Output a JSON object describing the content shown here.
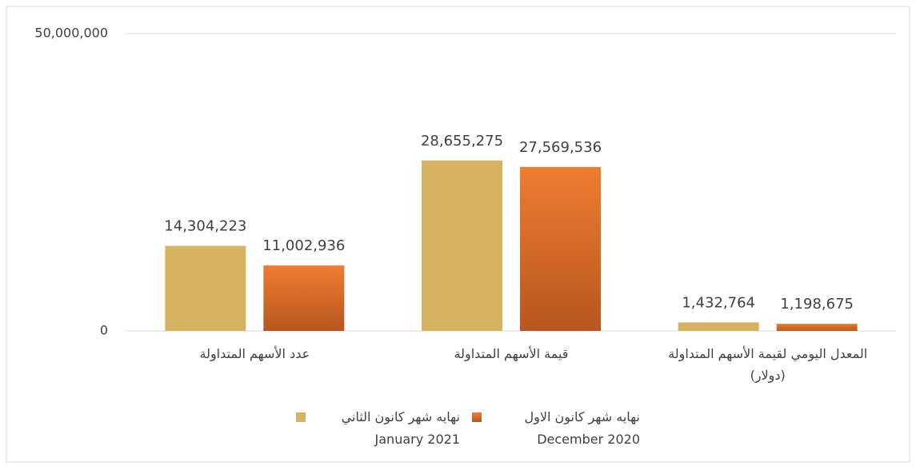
{
  "chart_data": {
    "type": "bar",
    "categories": [
      "عدد الأسهم المتداولة",
      "قيمة الأسهم المتداولة",
      "المعدل اليومي لقيمة الأسهم المتداولة\n(دولار)"
    ],
    "series": [
      {
        "name": "نهايه شهر كانون الثاني\nJanuary  2021",
        "color": "#D6B35E",
        "values": [
          14304223,
          28655275,
          1432764
        ],
        "value_labels": [
          "14,304,223",
          "28,655,275",
          "1,432,764"
        ]
      },
      {
        "name": "نهايه شهر كانون الاول\nDecember  2020",
        "color": "#ED7D31",
        "values": [
          11002936,
          27569536,
          1198675
        ],
        "value_labels": [
          "11,002,936",
          "27,569,536",
          "1,198,675"
        ]
      }
    ],
    "ylim": [
      0,
      50000000
    ],
    "yticks": [
      0,
      {
        "value": 50000000,
        "label": "50,000,000"
      }
    ],
    "grid": true,
    "legend": "bottom"
  }
}
